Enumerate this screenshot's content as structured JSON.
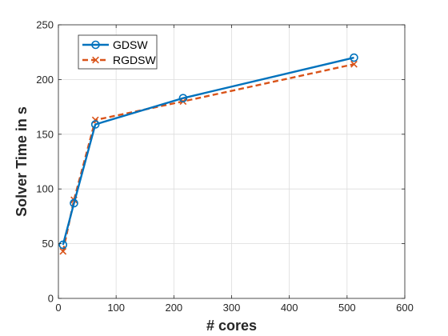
{
  "chart_data": {
    "type": "line",
    "xlabel": "# cores",
    "ylabel": "Solver Time in s",
    "xlim": [
      0,
      600
    ],
    "ylim": [
      0,
      250
    ],
    "xticks": [
      0,
      100,
      200,
      300,
      400,
      500,
      600
    ],
    "yticks": [
      0,
      50,
      100,
      150,
      200,
      250
    ],
    "grid": true,
    "legend_position": "top-left",
    "series": [
      {
        "name": "GDSW",
        "color": "#0072bd",
        "line_style": "solid",
        "marker": "circle",
        "x": [
          8,
          27,
          64,
          216,
          512
        ],
        "y": [
          49,
          87,
          159,
          183,
          220
        ]
      },
      {
        "name": "RGDSW",
        "color": "#d95319",
        "line_style": "dashed",
        "marker": "x",
        "x": [
          8,
          27,
          64,
          216,
          512
        ],
        "y": [
          43,
          90,
          163,
          180,
          214
        ]
      }
    ]
  }
}
